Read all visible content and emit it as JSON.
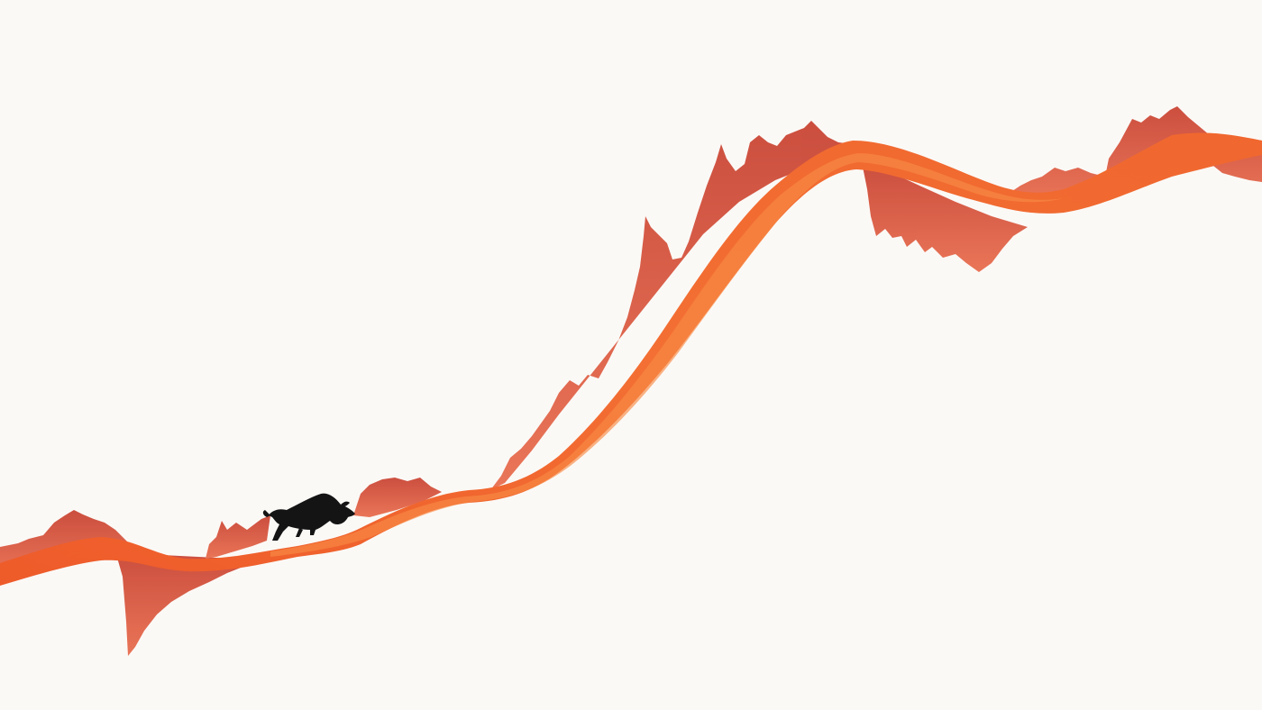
{
  "scene": {
    "subject": "rising-ribbon-illustration",
    "colors": {
      "background": "#fbf9f6",
      "ribbon_dark": "#d9442c",
      "ribbon_mid": "#e85a2d",
      "ribbon_light": "#f57f3c",
      "bull": "#141414"
    },
    "icons": [
      "bull-silhouette-icon"
    ]
  }
}
